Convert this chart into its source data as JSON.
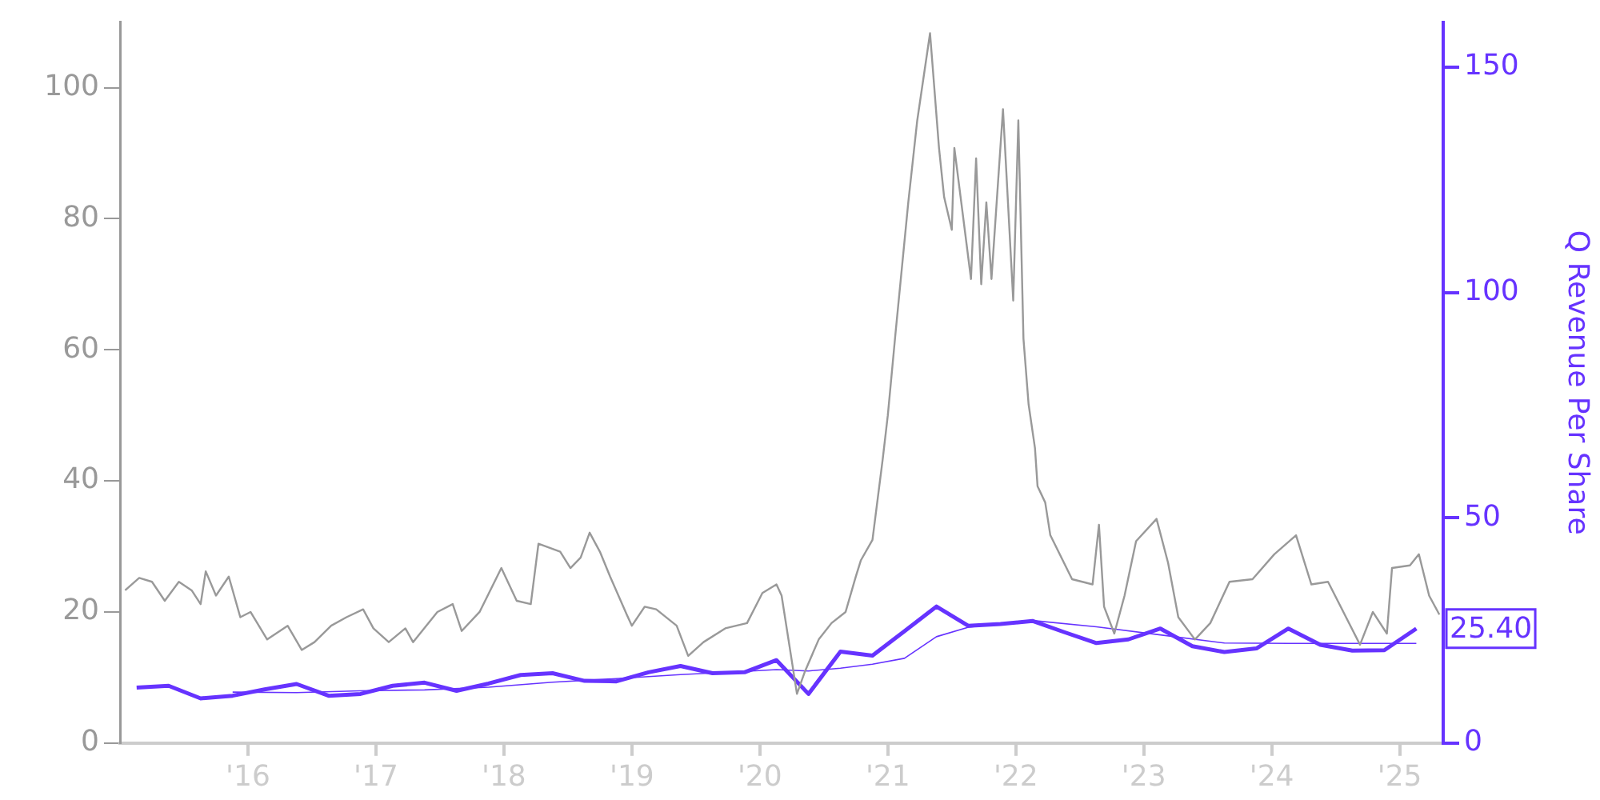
{
  "chart_data": {
    "type": "line",
    "y2label": "Q Revenue Per Share",
    "xlim": [
      2015,
      2025.34
    ],
    "xticks": [
      {
        "value": 2016,
        "label": "'16"
      },
      {
        "value": 2017,
        "label": "'17"
      },
      {
        "value": 2018,
        "label": "'18"
      },
      {
        "value": 2019,
        "label": "'19"
      },
      {
        "value": 2020,
        "label": "'20"
      },
      {
        "value": 2021,
        "label": "'21"
      },
      {
        "value": 2022,
        "label": "'22"
      },
      {
        "value": 2023,
        "label": "'23"
      },
      {
        "value": 2024,
        "label": "'24"
      },
      {
        "value": 2025,
        "label": "'25"
      }
    ],
    "ylim": [
      0,
      110
    ],
    "yticks": [
      0,
      20,
      40,
      60,
      80,
      100
    ],
    "y2lim": [
      0,
      160
    ],
    "y2ticks": [
      0,
      50,
      100,
      150
    ],
    "grid": false,
    "legend": false,
    "series": [
      {
        "color": "#999999",
        "x": [
          2015.04,
          2015.15,
          2015.25,
          2015.35,
          2015.46,
          2015.56,
          2015.63,
          2015.67,
          2015.75,
          2015.85,
          2015.94,
          2016.02,
          2016.15,
          2016.31,
          2016.42,
          2016.52,
          2016.65,
          2016.77,
          2016.9,
          2016.98,
          2017.1,
          2017.23,
          2017.29,
          2017.48,
          2017.6,
          2017.67,
          2017.81,
          2017.98,
          2018.1,
          2018.21,
          2018.27,
          2018.44,
          2018.52,
          2018.6,
          2018.67,
          2018.75,
          2018.83,
          2018.96,
          2019,
          2019.1,
          2019.19,
          2019.35,
          2019.44,
          2019.56,
          2019.73,
          2019.9,
          2020.02,
          2020.13,
          2020.17,
          2020.23,
          2020.29,
          2020.35,
          2020.46,
          2020.56,
          2020.67,
          2020.75,
          2020.79,
          2020.88,
          2020.96,
          2021,
          2021.06,
          2021.16,
          2021.23,
          2021.33,
          2021.4,
          2021.44,
          2021.5,
          2021.52,
          2021.65,
          2021.69,
          2021.73,
          2021.77,
          2021.81,
          2021.9,
          2021.98,
          2022.02,
          2022.06,
          2022.1,
          2022.15,
          2022.17,
          2022.23,
          2022.27,
          2022.44,
          2022.6,
          2022.65,
          2022.69,
          2022.77,
          2022.85,
          2022.94,
          2023.1,
          2023.19,
          2023.27,
          2023.4,
          2023.52,
          2023.67,
          2023.85,
          2024.02,
          2024.19,
          2024.31,
          2024.44,
          2024.56,
          2024.69,
          2024.79,
          2024.9,
          2024.94,
          2025.08,
          2025.15,
          2025.23,
          2025.31
        ],
        "values": [
          23.3,
          25.2,
          24.6,
          21.7,
          24.6,
          23.3,
          21.2,
          26.2,
          22.5,
          25.4,
          19.2,
          20,
          15.8,
          17.9,
          14.2,
          15.4,
          17.9,
          19.2,
          20.4,
          17.5,
          15.4,
          17.5,
          15.4,
          20,
          21.2,
          17.1,
          20,
          26.7,
          21.7,
          21.2,
          30.4,
          29.2,
          26.7,
          28.3,
          32.1,
          29.2,
          25.4,
          19.6,
          17.9,
          20.8,
          20.4,
          17.9,
          13.3,
          15.4,
          17.5,
          18.3,
          22.9,
          24.2,
          22.5,
          15,
          7.5,
          10.8,
          15.8,
          18.3,
          20,
          25.4,
          27.9,
          31,
          43.3,
          50,
          62.5,
          82.5,
          95,
          108.3,
          90.8,
          83.3,
          78.3,
          90.8,
          70.8,
          89.2,
          70,
          82.5,
          70.8,
          96.7,
          67.5,
          95,
          61.7,
          51.7,
          45,
          39.2,
          36.7,
          31.7,
          25,
          24.2,
          33.3,
          20.8,
          16.7,
          22.5,
          30.8,
          34.2,
          27.5,
          19.2,
          15.8,
          18.3,
          24.6,
          25,
          28.8,
          31.7,
          24.2,
          24.6,
          20,
          15,
          20,
          16.7,
          26.7,
          27.1,
          28.8,
          22.5,
          19.6
        ]
      },
      {
        "color": "#6633ff",
        "axis": "y2",
        "x": [
          2015.13,
          2015.38,
          2015.63,
          2015.88,
          2016.13,
          2016.38,
          2016.63,
          2016.88,
          2017.13,
          2017.38,
          2017.63,
          2017.88,
          2018.13,
          2018.38,
          2018.63,
          2018.88,
          2019.13,
          2019.38,
          2019.63,
          2019.88,
          2020.13,
          2020.38,
          2020.63,
          2020.88,
          2021.13,
          2021.38,
          2021.63,
          2021.88,
          2022.13,
          2022.38,
          2022.63,
          2022.88,
          2023.13,
          2023.38,
          2023.63,
          2023.88,
          2024.13,
          2024.38,
          2024.63,
          2024.88,
          2025.13
        ],
        "values": [
          12.3,
          12.7,
          9.9,
          10.5,
          11.9,
          13.1,
          10.5,
          10.9,
          12.7,
          13.4,
          11.6,
          13.2,
          15.1,
          15.5,
          13.8,
          13.7,
          15.7,
          17.1,
          15.5,
          15.7,
          18.4,
          10.9,
          20.3,
          19.4,
          24.8,
          30.3,
          26,
          26.4,
          27.1,
          24.6,
          22.2,
          23,
          25.4,
          21.5,
          20.2,
          21,
          25.4,
          21.8,
          20.5,
          20.6,
          25.4
        ],
        "value_labels": [
          null,
          null,
          null,
          null,
          null,
          null,
          null,
          null,
          null,
          null,
          null,
          null,
          null,
          null,
          null,
          null,
          null,
          null,
          null,
          null,
          null,
          null,
          null,
          null,
          null,
          null,
          null,
          null,
          null,
          null,
          null,
          null,
          null,
          null,
          null,
          null,
          null,
          null,
          null,
          null,
          "25.40"
        ]
      },
      {
        "color": "#6633ff",
        "axis": "y2",
        "x": [
          2015.88,
          2016.38,
          2016.88,
          2017.38,
          2017.88,
          2018.38,
          2018.88,
          2019.38,
          2019.88,
          2020.13,
          2020.38,
          2020.63,
          2020.88,
          2021.13,
          2021.38,
          2021.63,
          2022.13,
          2022.63,
          2023.13,
          2023.63,
          2024.13,
          2025.13
        ],
        "values": [
          11.3,
          11.2,
          11.6,
          11.8,
          12.4,
          13.5,
          14.3,
          15.2,
          15.9,
          16.3,
          16,
          16.6,
          17.5,
          18.8,
          23.6,
          25.7,
          27.2,
          25.8,
          24,
          22.2,
          22.1,
          22.1
        ]
      }
    ]
  }
}
